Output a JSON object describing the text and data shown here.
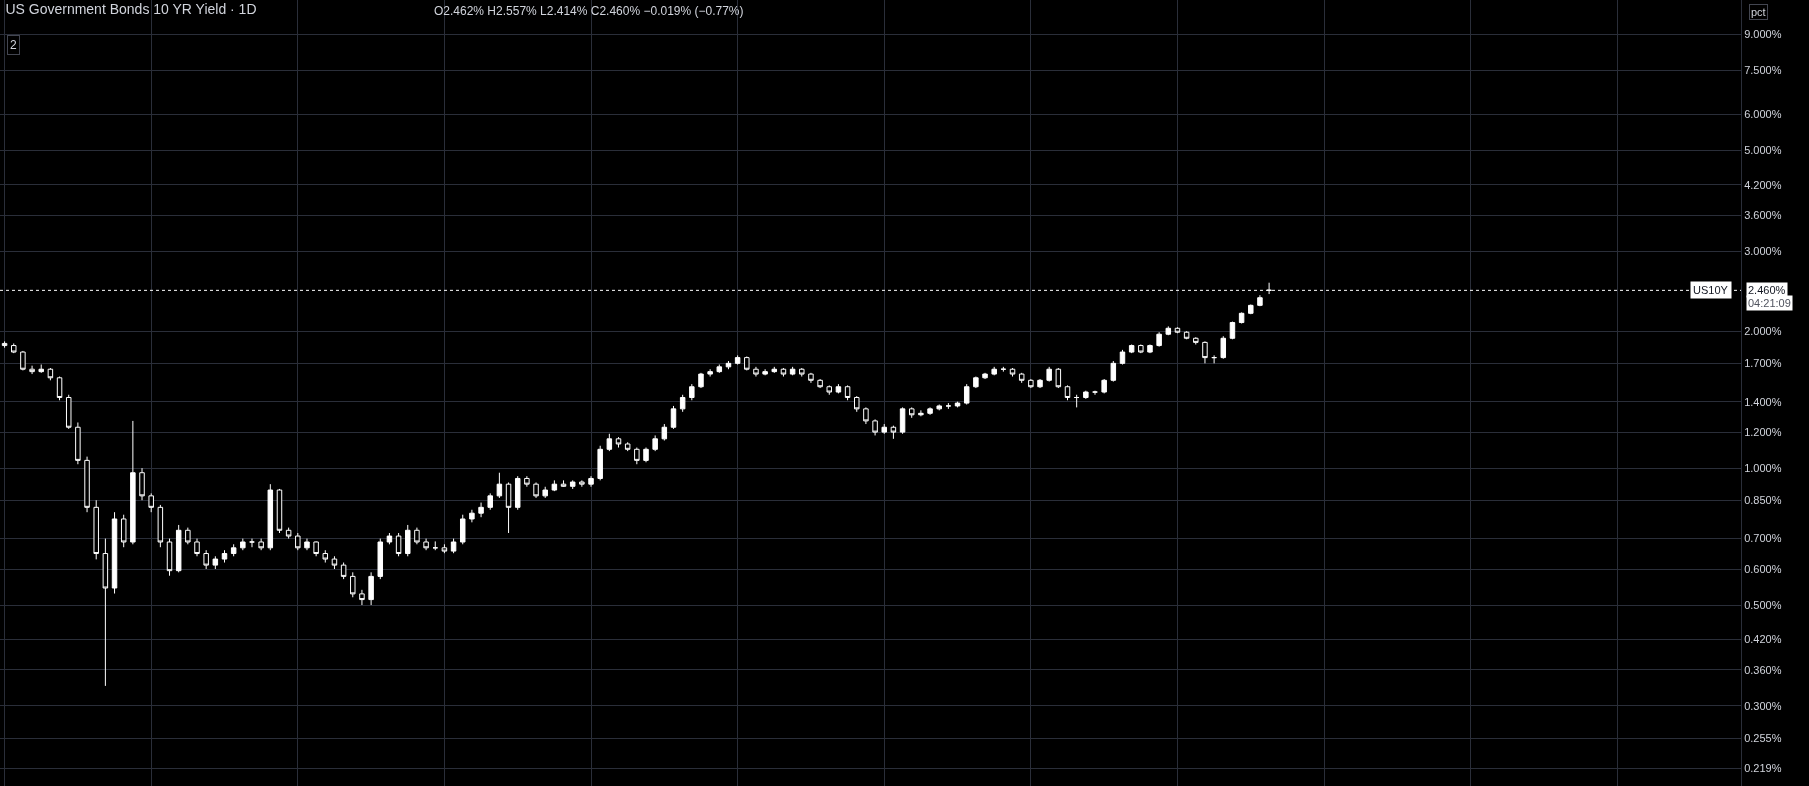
{
  "chart_data": {
    "type": "candlestick",
    "title": "US Government Bonds 10 YR Yield · 1D",
    "subtitle": "O2.462% H2.557% L2.414% C2.460% −0.019% (−0.77%)",
    "categories": [
      null,
      null,
      null,
      null,
      null,
      null,
      null,
      null,
      null,
      null,
      null,
      null,
      null,
      null,
      null,
      null,
      null,
      null,
      null,
      null,
      null,
      null,
      null,
      null,
      null,
      null,
      null,
      null,
      null,
      null,
      null,
      null,
      null,
      null,
      null,
      null,
      null,
      null,
      null,
      null,
      null,
      null,
      null,
      null,
      null,
      null,
      null,
      null,
      null,
      null,
      null,
      null,
      null,
      null,
      null,
      null,
      null,
      null,
      null,
      null,
      null,
      null,
      null,
      null,
      null,
      null,
      null,
      null,
      null,
      null,
      null,
      null,
      null,
      null,
      null,
      null,
      null,
      null,
      null,
      null,
      null,
      null,
      null,
      null,
      null,
      null,
      null,
      null,
      null,
      null,
      null,
      null,
      null,
      null,
      null,
      null,
      null,
      null,
      null,
      null,
      null,
      null,
      null,
      null,
      null,
      null,
      null,
      null,
      null,
      null,
      null,
      null,
      null,
      null,
      null,
      null,
      null,
      null,
      null,
      null,
      null,
      null,
      null,
      null,
      null,
      null,
      null,
      null,
      null,
      null,
      null,
      null,
      null,
      null,
      null,
      null,
      null,
      null,
      null,
      null,
      null,
      null,
      null,
      null,
      null,
      null,
      null,
      null,
      null,
      null,
      null,
      null,
      null,
      null,
      null,
      null,
      null,
      null,
      null,
      null,
      null,
      null,
      null,
      null,
      null,
      null,
      null,
      null,
      null,
      null,
      null,
      null,
      null,
      null,
      null,
      null,
      null,
      null,
      null,
      null,
      null,
      null,
      null,
      null,
      null,
      null,
      null,
      null,
      null,
      null
    ],
    "ohlc": [
      [
        1.88,
        1.9,
        1.84,
        1.86
      ],
      [
        1.86,
        1.88,
        1.79,
        1.8
      ],
      [
        1.8,
        1.81,
        1.64,
        1.65
      ],
      [
        1.65,
        1.68,
        1.61,
        1.63
      ],
      [
        1.63,
        1.69,
        1.62,
        1.65
      ],
      [
        1.65,
        1.66,
        1.56,
        1.58
      ],
      [
        1.58,
        1.59,
        1.41,
        1.43
      ],
      [
        1.43,
        1.45,
        1.22,
        1.23
      ],
      [
        1.23,
        1.26,
        1.02,
        1.04
      ],
      [
        1.04,
        1.06,
        0.8,
        0.82
      ],
      [
        0.82,
        0.85,
        0.63,
        0.649
      ],
      [
        0.649,
        0.7,
        0.332,
        0.545
      ],
      [
        0.545,
        0.8,
        0.53,
        0.773
      ],
      [
        0.773,
        0.79,
        0.67,
        0.688
      ],
      [
        0.688,
        1.27,
        0.68,
        0.977
      ],
      [
        0.977,
        1.0,
        0.85,
        0.869
      ],
      [
        0.869,
        0.88,
        0.8,
        0.82
      ],
      [
        0.82,
        0.83,
        0.67,
        0.688
      ],
      [
        0.688,
        0.7,
        0.58,
        0.595
      ],
      [
        0.595,
        0.75,
        0.59,
        0.73
      ],
      [
        0.73,
        0.74,
        0.68,
        0.688
      ],
      [
        0.688,
        0.7,
        0.64,
        0.649
      ],
      [
        0.649,
        0.66,
        0.6,
        0.612
      ],
      [
        0.612,
        0.64,
        0.6,
        0.631
      ],
      [
        0.631,
        0.66,
        0.62,
        0.649
      ],
      [
        0.649,
        0.68,
        0.64,
        0.668
      ],
      [
        0.668,
        0.7,
        0.66,
        0.688
      ],
      [
        0.688,
        0.7,
        0.67,
        0.688
      ],
      [
        0.688,
        0.7,
        0.66,
        0.668
      ],
      [
        0.668,
        0.922,
        0.66,
        0.895
      ],
      [
        0.895,
        0.9,
        0.72,
        0.73
      ],
      [
        0.73,
        0.74,
        0.7,
        0.709
      ],
      [
        0.709,
        0.72,
        0.66,
        0.668
      ],
      [
        0.668,
        0.7,
        0.66,
        0.688
      ],
      [
        0.688,
        0.69,
        0.64,
        0.649
      ],
      [
        0.649,
        0.66,
        0.62,
        0.631
      ],
      [
        0.631,
        0.64,
        0.6,
        0.612
      ],
      [
        0.612,
        0.62,
        0.57,
        0.578
      ],
      [
        0.578,
        0.59,
        0.52,
        0.529
      ],
      [
        0.529,
        0.54,
        0.5,
        0.514
      ],
      [
        0.514,
        0.59,
        0.5,
        0.578
      ],
      [
        0.578,
        0.7,
        0.57,
        0.688
      ],
      [
        0.688,
        0.72,
        0.68,
        0.709
      ],
      [
        0.709,
        0.72,
        0.64,
        0.649
      ],
      [
        0.649,
        0.75,
        0.64,
        0.73
      ],
      [
        0.73,
        0.74,
        0.68,
        0.688
      ],
      [
        0.688,
        0.7,
        0.66,
        0.668
      ],
      [
        0.668,
        0.69,
        0.66,
        0.668
      ],
      [
        0.668,
        0.68,
        0.65,
        0.657
      ],
      [
        0.657,
        0.7,
        0.65,
        0.688
      ],
      [
        0.688,
        0.79,
        0.68,
        0.773
      ],
      [
        0.773,
        0.81,
        0.76,
        0.796
      ],
      [
        0.796,
        0.84,
        0.78,
        0.82
      ],
      [
        0.82,
        0.88,
        0.81,
        0.869
      ],
      [
        0.869,
        0.977,
        0.86,
        0.922
      ],
      [
        0.922,
        0.93,
        0.72,
        0.82
      ],
      [
        0.82,
        0.96,
        0.81,
        0.949
      ],
      [
        0.949,
        0.96,
        0.91,
        0.922
      ],
      [
        0.922,
        0.93,
        0.86,
        0.869
      ],
      [
        0.869,
        0.91,
        0.86,
        0.895
      ],
      [
        0.895,
        0.94,
        0.89,
        0.922
      ],
      [
        0.922,
        0.94,
        0.91,
        0.912
      ],
      [
        0.912,
        0.94,
        0.9,
        0.932
      ],
      [
        0.932,
        0.94,
        0.91,
        0.922
      ],
      [
        0.922,
        0.96,
        0.91,
        0.949
      ],
      [
        0.949,
        1.12,
        0.94,
        1.1
      ],
      [
        1.1,
        1.19,
        1.09,
        1.16
      ],
      [
        1.16,
        1.17,
        1.11,
        1.13
      ],
      [
        1.13,
        1.14,
        1.09,
        1.1
      ],
      [
        1.1,
        1.11,
        1.02,
        1.04
      ],
      [
        1.04,
        1.11,
        1.03,
        1.1
      ],
      [
        1.1,
        1.18,
        1.09,
        1.16
      ],
      [
        1.16,
        1.25,
        1.15,
        1.23
      ],
      [
        1.23,
        1.37,
        1.22,
        1.35
      ],
      [
        1.35,
        1.45,
        1.33,
        1.43
      ],
      [
        1.43,
        1.53,
        1.41,
        1.51
      ],
      [
        1.51,
        1.62,
        1.5,
        1.61
      ],
      [
        1.61,
        1.65,
        1.59,
        1.63
      ],
      [
        1.63,
        1.69,
        1.62,
        1.67
      ],
      [
        1.67,
        1.72,
        1.65,
        1.7
      ],
      [
        1.7,
        1.77,
        1.69,
        1.75
      ],
      [
        1.75,
        1.76,
        1.64,
        1.65
      ],
      [
        1.65,
        1.67,
        1.59,
        1.61
      ],
      [
        1.61,
        1.65,
        1.6,
        1.63
      ],
      [
        1.63,
        1.67,
        1.62,
        1.65
      ],
      [
        1.65,
        1.66,
        1.59,
        1.61
      ],
      [
        1.61,
        1.67,
        1.6,
        1.65
      ],
      [
        1.65,
        1.66,
        1.59,
        1.61
      ],
      [
        1.61,
        1.62,
        1.54,
        1.56
      ],
      [
        1.56,
        1.57,
        1.5,
        1.51
      ],
      [
        1.51,
        1.52,
        1.45,
        1.47
      ],
      [
        1.47,
        1.53,
        1.46,
        1.51
      ],
      [
        1.51,
        1.52,
        1.41,
        1.43
      ],
      [
        1.43,
        1.44,
        1.33,
        1.35
      ],
      [
        1.35,
        1.36,
        1.25,
        1.27
      ],
      [
        1.27,
        1.28,
        1.18,
        1.2
      ],
      [
        1.2,
        1.25,
        1.19,
        1.23
      ],
      [
        1.23,
        1.24,
        1.16,
        1.2
      ],
      [
        1.2,
        1.36,
        1.19,
        1.35
      ],
      [
        1.35,
        1.36,
        1.29,
        1.31
      ],
      [
        1.31,
        1.34,
        1.3,
        1.32
      ],
      [
        1.32,
        1.36,
        1.31,
        1.35
      ],
      [
        1.35,
        1.38,
        1.34,
        1.37
      ],
      [
        1.37,
        1.39,
        1.35,
        1.37
      ],
      [
        1.37,
        1.4,
        1.36,
        1.39
      ],
      [
        1.39,
        1.53,
        1.38,
        1.51
      ],
      [
        1.51,
        1.59,
        1.5,
        1.58
      ],
      [
        1.58,
        1.62,
        1.57,
        1.61
      ],
      [
        1.61,
        1.67,
        1.6,
        1.65
      ],
      [
        1.65,
        1.67,
        1.63,
        1.65
      ],
      [
        1.65,
        1.66,
        1.59,
        1.61
      ],
      [
        1.61,
        1.62,
        1.54,
        1.56
      ],
      [
        1.56,
        1.57,
        1.5,
        1.51
      ],
      [
        1.51,
        1.57,
        1.5,
        1.56
      ],
      [
        1.56,
        1.67,
        1.55,
        1.65
      ],
      [
        1.65,
        1.66,
        1.5,
        1.51
      ],
      [
        1.51,
        1.52,
        1.41,
        1.43
      ],
      [
        1.43,
        1.45,
        1.36,
        1.43
      ],
      [
        1.43,
        1.48,
        1.42,
        1.47
      ],
      [
        1.47,
        1.48,
        1.45,
        1.47
      ],
      [
        1.47,
        1.57,
        1.46,
        1.56
      ],
      [
        1.56,
        1.72,
        1.55,
        1.7
      ],
      [
        1.7,
        1.82,
        1.69,
        1.8
      ],
      [
        1.8,
        1.87,
        1.79,
        1.86
      ],
      [
        1.86,
        1.87,
        1.79,
        1.8
      ],
      [
        1.8,
        1.87,
        1.79,
        1.86
      ],
      [
        1.86,
        1.99,
        1.85,
        1.97
      ],
      [
        1.97,
        2.05,
        1.96,
        2.03
      ],
      [
        2.03,
        2.04,
        1.98,
        1.99
      ],
      [
        1.99,
        2.0,
        1.92,
        1.93
      ],
      [
        1.93,
        1.94,
        1.87,
        1.89
      ],
      [
        1.89,
        1.9,
        1.7,
        1.75
      ],
      [
        1.75,
        1.77,
        1.7,
        1.75
      ],
      [
        1.75,
        1.95,
        1.74,
        1.93
      ],
      [
        1.93,
        2.1,
        1.92,
        2.09
      ],
      [
        2.09,
        2.2,
        2.08,
        2.19
      ],
      [
        2.19,
        2.29,
        2.18,
        2.28
      ],
      [
        2.28,
        2.4,
        2.27,
        2.37
      ],
      [
        2.462,
        2.557,
        2.414,
        2.46
      ],
      null,
      null,
      null,
      null,
      null,
      null,
      null,
      null,
      null,
      null,
      null,
      null,
      null,
      null,
      null,
      null,
      null,
      null,
      null,
      null,
      null,
      null,
      null,
      null,
      null,
      null,
      null,
      null,
      null,
      null,
      null,
      null,
      null,
      null,
      null,
      null,
      null,
      null,
      null,
      null,
      null,
      null,
      null,
      null,
      null,
      null,
      null,
      null,
      null,
      null,
      null
    ],
    "color": "#ffffff",
    "log": true,
    "ylim": [
      0.2,
      10.7
    ],
    "yticks": [
      {
        "value": 0.219,
        "label": "0.219%"
      },
      {
        "value": 0.255,
        "label": "0.255%"
      },
      {
        "value": 0.3,
        "label": "0.300%"
      },
      {
        "value": 0.36,
        "label": "0.360%"
      },
      {
        "value": 0.42,
        "label": "0.420%"
      },
      {
        "value": 0.5,
        "label": "0.500%"
      },
      {
        "value": 0.6,
        "label": "0.600%"
      },
      {
        "value": 0.7,
        "label": "0.700%"
      },
      {
        "value": 0.85,
        "label": "0.850%"
      },
      {
        "value": 1,
        "label": "1.000%"
      },
      {
        "value": 1.2,
        "label": "1.200%"
      },
      {
        "value": 1.4,
        "label": "1.400%"
      },
      {
        "value": 1.7,
        "label": "1.700%"
      },
      {
        "value": 2,
        "label": "2.000%"
      },
      {
        "value": 3,
        "label": "3.000%"
      },
      {
        "value": 3.6,
        "label": "3.600%"
      },
      {
        "value": 4.2,
        "label": "4.200%"
      },
      {
        "value": 5,
        "label": "5.000%"
      },
      {
        "value": 6,
        "label": "6.000%"
      },
      {
        "value": 7.5,
        "label": "7.500%"
      },
      {
        "value": 9,
        "label": "9.000%"
      }
    ],
    "tick_labels": "y",
    "grid": true,
    "ref_lines": [
      {
        "axis": "y",
        "value": 2.46,
        "label": "US10Y",
        "color": "#ffffff",
        "line_style": "dotted"
      }
    ],
    "annotations": [
      "2.460%",
      "04:21:09",
      "2",
      "pct"
    ]
  }
}
